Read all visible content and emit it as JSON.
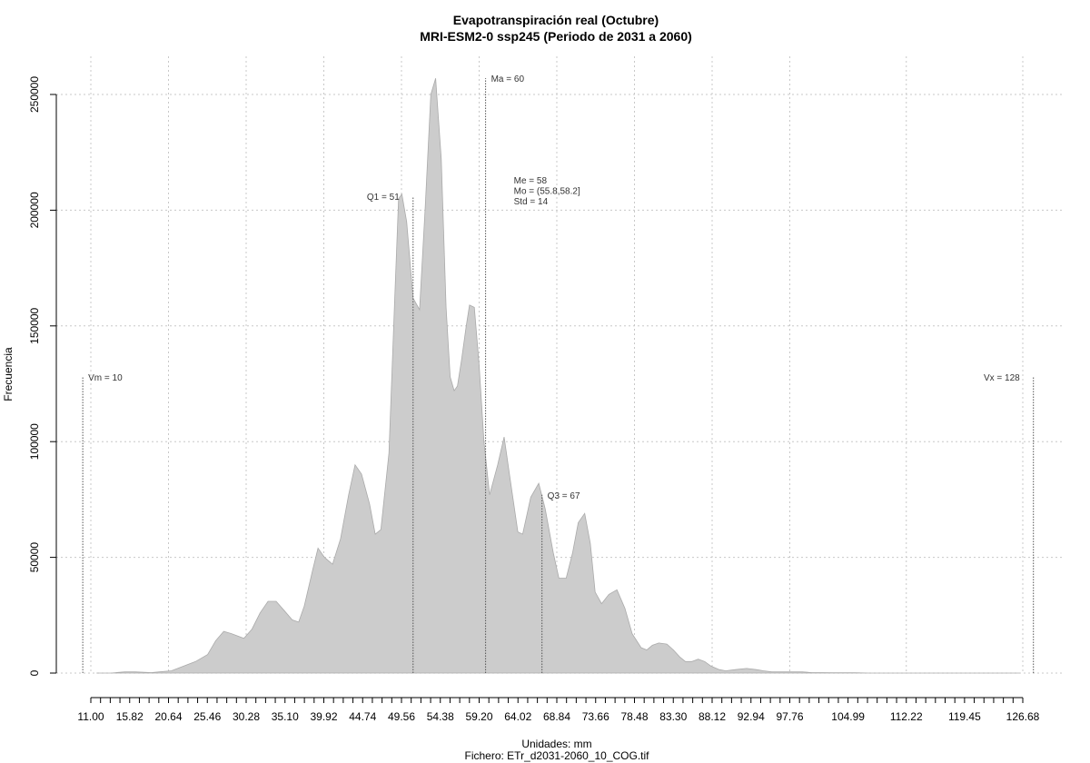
{
  "chart_data": {
    "type": "area",
    "title": "Evapotranspiración real (Octubre)",
    "subtitle": "MRI-ESM2-0 ssp245 (Periodo de 2031 a 2060)",
    "xlabel": "Unidades: mm",
    "caption": "Fichero: ETr_d2031-2060_10_COG.tif",
    "ylabel": "Frecuencia",
    "xlim": [
      8.5,
      130
    ],
    "ylim": [
      0,
      250000
    ],
    "grid": true,
    "y_ticks": [
      0,
      50000,
      100000,
      150000,
      200000,
      250000
    ],
    "y_tick_labels": [
      "0",
      "50000",
      "100000",
      "150000",
      "200000",
      "250000"
    ],
    "x_tick_values": [
      11.0,
      15.82,
      20.64,
      25.46,
      30.28,
      35.1,
      39.92,
      44.74,
      49.56,
      54.38,
      59.2,
      64.02,
      68.84,
      73.66,
      78.48,
      83.3,
      88.12,
      92.94,
      97.76,
      104.99,
      112.22,
      119.45,
      126.68
    ],
    "x_tick_labels": [
      "11.00",
      "15.82",
      "20.64",
      "25.46",
      "30.28",
      "35.10",
      "39.92",
      "44.74",
      "49.56",
      "54.38",
      "59.20",
      "64.02",
      "68.84",
      "73.66",
      "78.48",
      "83.30",
      "88.12",
      "92.94",
      "97.76",
      "104.99",
      "112.22",
      "119.45",
      "126.68"
    ],
    "x_minor_step": 1.205,
    "x_minor_range": [
      11.0,
      126.68
    ],
    "x_grid": [
      11.0,
      20.64,
      30.28,
      39.92,
      49.56,
      59.2,
      68.84,
      78.48,
      88.12,
      97.76,
      112.22,
      126.68
    ],
    "series": [
      {
        "x": [
          11.7,
          13.5,
          15.2,
          16.5,
          18.5,
          19.5,
          21.0,
          22.5,
          24.0,
          25.5,
          26.5,
          27.5,
          28.5,
          30.0,
          31.0,
          32.0,
          33.0,
          34.0,
          35.0,
          36.0,
          36.8,
          37.5,
          38.5,
          39.2,
          40.0,
          41.0,
          42.0,
          43.0,
          43.8,
          44.6,
          45.6,
          46.3,
          47.0,
          48.0,
          48.7,
          49.2,
          49.6,
          50.2,
          51.0,
          51.8,
          52.5,
          53.2,
          53.8,
          54.5,
          55.1,
          55.6,
          56.1,
          56.5,
          57.0,
          57.6,
          58.0,
          58.6,
          59.2,
          59.8,
          60.5,
          61.5,
          62.3,
          63.0,
          64.0,
          64.6,
          65.6,
          66.6,
          67.4,
          68.4,
          69.1,
          70.0,
          70.8,
          71.5,
          72.3,
          73.0,
          73.6,
          74.4,
          75.3,
          76.3,
          77.3,
          78.2,
          79.3,
          80.0,
          80.7,
          81.5,
          82.5,
          83.3,
          84.1,
          84.8,
          85.6,
          86.4,
          87.2,
          88.0,
          89.0,
          89.8,
          91.0,
          92.4,
          93.6,
          94.5,
          95.5,
          96.3,
          97.4,
          98.2,
          99.3,
          100.5,
          101.7,
          103.1,
          104.4,
          105.9,
          107.6,
          109.0,
          110.8,
          112.2,
          113.6,
          115.2,
          116.8,
          118.3,
          120.0,
          121.5,
          123.0,
          124.5,
          126.3
        ],
        "y": [
          0,
          0,
          500,
          500,
          200,
          500,
          1000,
          3000,
          5000,
          8000,
          14000,
          18000,
          17000,
          15000,
          19000,
          26000,
          31000,
          31000,
          27000,
          23000,
          22000,
          29000,
          44000,
          54000,
          50000,
          47000,
          58000,
          77000,
          90000,
          86000,
          73000,
          60000,
          62000,
          95000,
          160000,
          205000,
          207000,
          195000,
          162000,
          157000,
          201000,
          250000,
          257000,
          222000,
          158000,
          128000,
          122000,
          124000,
          135000,
          150000,
          159000,
          158000,
          133000,
          100000,
          77000,
          90000,
          102000,
          85000,
          61000,
          60000,
          76000,
          82000,
          71000,
          52000,
          41000,
          41000,
          52000,
          65000,
          69000,
          56000,
          35000,
          30000,
          34000,
          36000,
          28000,
          17000,
          11000,
          10000,
          12000,
          13000,
          12500,
          10000,
          7000,
          5000,
          5000,
          6000,
          5000,
          3000,
          1500,
          1000,
          1500,
          2000,
          1500,
          1000,
          500,
          500,
          500,
          500,
          500,
          200,
          200,
          100,
          100,
          100,
          0,
          0,
          0,
          0,
          0,
          0,
          0,
          0,
          0,
          0,
          0,
          0,
          0
        ]
      }
    ],
    "markers": [
      {
        "name": "vm",
        "x": 10,
        "top": 128000,
        "label": "Vm = 10",
        "label_side": "right",
        "label_y": 128000
      },
      {
        "name": "q1",
        "x": 51,
        "top": 206000,
        "label": "Q1 = 51",
        "label_side": "left",
        "label_y": 206000
      },
      {
        "name": "ma",
        "x": 60,
        "top": 257000,
        "label": "Ma = 60",
        "label_side": "right",
        "label_y": 257000
      },
      {
        "name": "q3",
        "x": 67,
        "top": 77000,
        "label": "Q3 = 67",
        "label_side": "right",
        "label_y": 77000
      },
      {
        "name": "vx",
        "x": 128,
        "top": 128000,
        "label": "Vx = 128",
        "label_side": "left",
        "label_y": 128000
      }
    ],
    "stats_box": {
      "lines": [
        "Me = 58",
        "Mo = (55.8,58.2]",
        "Std = 14"
      ],
      "x": 63.5,
      "y": 210000
    }
  },
  "colors": {
    "area_fill": "#cccccc",
    "area_line": "#aaaaaa",
    "grid": "#c8c8c8",
    "marker_line": "#555555",
    "axis": "#000000"
  }
}
